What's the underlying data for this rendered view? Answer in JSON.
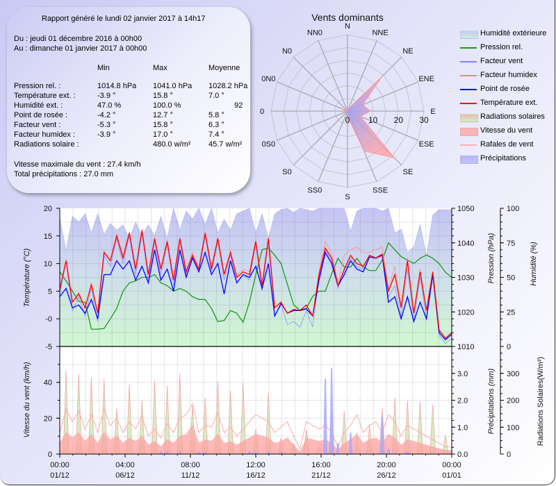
{
  "summary": {
    "generated": "Rapport généré le lundi 02 janvier 2017 à 14h17",
    "from": "Du : jeudi 01 décembre 2016 à 00h00",
    "to": "Au : dimanche 01 janvier 2017 à 00h00",
    "headers": [
      "Min",
      "Max",
      "Moyenne"
    ],
    "rows": [
      {
        "label": "Pression rel. :",
        "min": "1014.8 hPa",
        "max": "1041.0 hPa",
        "avg": "1028.2 hPa"
      },
      {
        "label": "Température ext. :",
        "min": "-3.9 °",
        "max": "15.8 °",
        "avg": "7.0 °"
      },
      {
        "label": "Humidité ext. :",
        "min": "47.0 %",
        "max": "100.0 %",
        "avg": "92"
      },
      {
        "label": "Point de rosée :",
        "min": "-4.2 °",
        "max": "12.7 °",
        "avg": "5.8 °"
      },
      {
        "label": "Facteur vent :",
        "min": "-5.3 °",
        "max": "15.8 °",
        "avg": "6.3 °"
      },
      {
        "label": "Facteur humidex :",
        "min": "-3.9 °",
        "max": "17.0 °",
        "avg": "7.4 °"
      },
      {
        "label": "Radiations solaire :",
        "min": "",
        "max": "480.0 w/m²",
        "avg": "45.7 w/m²"
      }
    ],
    "max_wind": "Vitesse maximale du vent : 27.4 km/h",
    "total_rain": "Total précipitations : 27.0 mm"
  },
  "legend": [
    {
      "label": "Humidité extérieure",
      "kind": "area",
      "color": "#c8c8f4",
      "color2": "#c8f0d8"
    },
    {
      "label": "Pression rel.",
      "kind": "line",
      "color": "#1a9a1a"
    },
    {
      "label": "Facteur vent",
      "kind": "line",
      "color": "#8080ff"
    },
    {
      "label": "Facteur humidex",
      "kind": "line",
      "color": "#ff8080"
    },
    {
      "label": "Point de rosée",
      "kind": "line",
      "color": "#0000ff"
    },
    {
      "label": "Température ext.",
      "kind": "line",
      "color": "#ff0000"
    },
    {
      "label": "Radiations solaires",
      "kind": "area",
      "color": "#f0b8b8",
      "color2": "#c8f0c0"
    },
    {
      "label": "Vitesse du vent",
      "kind": "area",
      "color": "#f7b5b5",
      "color2": "#f7b5b5"
    },
    {
      "label": "Rafales de vent",
      "kind": "line",
      "color": "#ffb0b0"
    },
    {
      "label": "Précipitations",
      "kind": "area",
      "color": "#b8b8fa",
      "color2": "#c0c0fa"
    }
  ],
  "chart_data": [
    {
      "type": "radar",
      "title": "Vents dominants",
      "directions": [
        "N",
        "NNE",
        "NE",
        "ENE",
        "E",
        "ESE",
        "SE",
        "SSE",
        "S",
        "SS0",
        "S0",
        "0S0",
        "0",
        "0N0",
        "N0",
        "NN0"
      ],
      "values": [
        0.5,
        1,
        19,
        6.5,
        9,
        5.5,
        26,
        17,
        2,
        1,
        1,
        1,
        2,
        0.5,
        0.5,
        0.5
      ],
      "rlim": [
        0,
        30
      ],
      "rticks": [
        "0",
        "10",
        "20",
        "30"
      ],
      "color": "#ff9a9a",
      "center_color": "#a0a0f5"
    },
    {
      "type": "line",
      "x": [
        "01/12 00h",
        "01/12 12h",
        "02/12 00h",
        "02/12 12h",
        "03/12 00h",
        "03/12 12h",
        "04/12 00h",
        "04/12 12h",
        "05/12 00h",
        "05/12 12h",
        "06/12 00h",
        "06/12 12h",
        "07/12 00h",
        "07/12 12h",
        "08/12 00h",
        "08/12 12h",
        "09/12 00h",
        "09/12 12h",
        "10/12 00h",
        "10/12 12h",
        "11/12 00h",
        "11/12 12h",
        "12/12 00h",
        "12/12 12h",
        "13/12 00h",
        "13/12 12h",
        "14/12 00h",
        "14/12 12h",
        "15/12 00h",
        "15/12 12h",
        "16/12 00h",
        "16/12 12h",
        "17/12 00h",
        "17/12 12h",
        "18/12 00h",
        "18/12 12h",
        "19/12 00h",
        "19/12 12h",
        "20/12 00h",
        "20/12 12h",
        "21/12 00h",
        "21/12 12h",
        "22/12 00h",
        "22/12 12h",
        "23/12 00h",
        "23/12 12h",
        "24/12 00h",
        "24/12 12h",
        "25/12 00h",
        "25/12 12h",
        "26/12 00h",
        "26/12 12h",
        "27/12 00h",
        "27/12 12h",
        "28/12 00h",
        "28/12 12h",
        "29/12 00h",
        "29/12 12h",
        "30/12 00h",
        "30/12 12h",
        "31/12 00h",
        "31/12 12h",
        "01/01 00h"
      ],
      "xticks": [
        {
          "time": "00:00",
          "date": "01/12"
        },
        {
          "time": "04:00",
          "date": "06/12"
        },
        {
          "time": "08:00",
          "date": "11/12"
        },
        {
          "time": "12:00",
          "date": "16/12"
        },
        {
          "time": "16:00",
          "date": "21/12"
        },
        {
          "time": "20:00",
          "date": "26/12"
        },
        {
          "time": "00:00",
          "date": "01/01"
        }
      ],
      "ylabel": "Température (°C)",
      "ylim": [
        -5,
        20
      ],
      "yticks": [
        "20",
        "15",
        "10",
        "5",
        "-0",
        "-5"
      ],
      "y2label": "Pression (hPa)",
      "y2lim": [
        1010,
        1050
      ],
      "y2ticks": [
        "1050",
        "1040",
        "1030",
        "1020",
        "1010"
      ],
      "y3label": "Humidité (%)",
      "y3lim": [
        0,
        100
      ],
      "y3ticks": [
        "100",
        "75",
        "50",
        "25",
        "0"
      ],
      "grid": true,
      "series": [
        {
          "name": "Humidité extérieure",
          "axis": "y3",
          "kind": "area",
          "values": [
            92.8,
            69,
            94,
            90,
            96,
            82,
            96,
            81,
            89,
            84,
            88,
            78,
            90,
            80,
            88,
            80,
            94,
            78,
            100,
            84,
            98,
            92,
            100,
            88,
            100,
            82,
            92,
            84,
            96,
            98,
            100,
            82,
            96,
            78,
            96,
            99,
            100,
            97,
            100,
            99,
            98,
            100,
            100,
            100,
            100,
            100,
            83,
            98,
            100,
            100,
            100,
            98,
            100,
            82,
            85,
            68,
            72,
            88,
            65,
            95,
            99,
            99,
            99
          ]
        },
        {
          "name": "Pression rel.",
          "axis": "y2",
          "color": "#1a9a1a",
          "values": [
            1031.6,
            1029,
            1026,
            1023,
            1022.8,
            1015,
            1015,
            1015.2,
            1018,
            1021,
            1026,
            1028.4,
            1029,
            1030,
            1030,
            1030.8,
            1028.4,
            1027.6,
            1026,
            1026.8,
            1026,
            1024.4,
            1023.6,
            1023.6,
            1021,
            1017.2,
            1017.5,
            1020.4,
            1019.6,
            1017,
            1022.8,
            1030.8,
            1038,
            1038.5,
            1036.4,
            1034,
            1028,
            1022,
            1020.5,
            1021,
            1024.5,
            1026,
            1026,
            1031,
            1035.5,
            1033,
            1033,
            1035.5,
            1033,
            1032,
            1032,
            1035,
            1040,
            1038,
            1036,
            1035,
            1034,
            1035.5,
            1036.5,
            1035.5,
            1034,
            1031.5,
            1030
          ]
        },
        {
          "name": "Facteur vent",
          "axis": "y",
          "color": "#8c8cff",
          "values": [
            4.5,
            10.5,
            1.5,
            4,
            0.5,
            5.5,
            -0.5,
            11.5,
            9.5,
            14.5,
            10,
            15,
            8,
            15.5,
            7,
            14,
            8,
            13.5,
            6,
            14,
            8,
            11,
            8.5,
            15,
            8.5,
            14,
            7,
            11.5,
            6.5,
            8,
            7,
            13.5,
            5,
            14,
            0.5,
            2.5,
            -1,
            -0.5,
            -1.5,
            1.5,
            -1.5,
            7.5,
            12.5,
            10.5,
            5.5,
            8.5,
            11,
            9.5,
            9,
            11.2,
            10.8,
            11.5,
            4,
            6,
            0.5,
            9,
            -0.5,
            7.5,
            0,
            8,
            -3,
            -4.5,
            -3.5
          ]
        },
        {
          "name": "Facteur humidex",
          "axis": "y",
          "color": "#ff8c8c",
          "values": [
            5.5,
            10.8,
            3,
            4.8,
            2,
            6.5,
            1,
            12.2,
            10.8,
            15.3,
            11.5,
            15.8,
            9.3,
            16.3,
            8.3,
            14.8,
            9.3,
            14.3,
            7.2,
            14.8,
            9,
            12,
            9.5,
            15.8,
            9.5,
            14.8,
            8.3,
            12.3,
            8,
            9,
            8.5,
            14.3,
            6.2,
            14.8,
            2,
            3,
            1,
            1.7,
            1.5,
            2.5,
            0.5,
            8.5,
            14,
            11.8,
            6.5,
            11.5,
            12.5,
            13,
            12,
            12,
            12.5,
            13,
            5.5,
            9.5,
            2.5,
            11,
            1.2,
            9,
            1.5,
            8.5,
            -2,
            -3.5,
            -2.5
          ]
        },
        {
          "name": "Point de rosée",
          "axis": "y",
          "color": "#0000ff",
          "values": [
            4,
            5.5,
            2,
            2.5,
            1,
            3.5,
            0,
            8,
            8,
            10.5,
            9,
            10.5,
            7,
            9.5,
            6.5,
            12.5,
            7,
            9,
            5,
            12.5,
            7.5,
            11,
            8.5,
            12,
            8,
            10,
            4.5,
            10.5,
            6.5,
            8,
            7.5,
            9.5,
            5.5,
            10,
            0.5,
            2.8,
            1,
            1.5,
            1.5,
            1.8,
            0.5,
            7,
            12,
            10,
            6,
            8,
            10.5,
            9,
            8.5,
            11.2,
            11,
            11.5,
            3,
            4,
            0,
            4,
            -0.5,
            3,
            0,
            8,
            -2.5,
            -3.8,
            -2.8
          ]
        },
        {
          "name": "Température ext.",
          "axis": "y",
          "color": "#ff0000",
          "values": [
            5.3,
            10.5,
            3,
            4.5,
            2,
            6.2,
            1,
            12,
            10.5,
            15,
            11,
            15.5,
            9,
            16,
            8,
            14.5,
            9,
            14,
            7,
            14.5,
            8.5,
            11.5,
            9,
            15.5,
            9,
            14.5,
            8,
            12,
            7.5,
            8.5,
            8,
            14,
            6,
            14.5,
            2,
            3,
            1,
            1.7,
            1.5,
            2.5,
            0.5,
            8,
            12.8,
            11,
            6,
            9,
            11.5,
            10,
            9.5,
            11.5,
            11,
            11.7,
            5,
            8,
            2,
            10.5,
            1,
            8.5,
            1.5,
            8.5,
            -2,
            -3.5,
            -2.5
          ]
        }
      ]
    },
    {
      "type": "area",
      "ylabel": "Vitesse du vent (km/h)",
      "ylim": [
        0,
        60
      ],
      "yticks": [
        "40",
        "20",
        "0"
      ],
      "y2label": "Précipitations (mm)",
      "y2lim": [
        0,
        4
      ],
      "y2ticks": [
        "3.0",
        "2.0",
        "1.0",
        "0.0"
      ],
      "y3label": "Radiations Solaires(W/m²)",
      "y3lim": [
        0,
        400
      ],
      "y3ticks": [
        "300",
        "200",
        "100",
        "0"
      ],
      "grid": true,
      "series": [
        {
          "name": "Vitesse du vent",
          "axis": "y",
          "values": [
            6,
            12,
            9,
            12,
            7,
            11,
            6,
            12,
            8,
            10,
            6,
            9,
            7,
            10,
            5,
            7,
            4,
            8,
            6,
            10,
            11,
            16,
            6,
            8,
            7,
            11,
            6,
            7,
            5,
            7,
            9,
            11,
            10,
            9,
            6,
            7,
            9,
            5,
            1,
            9,
            8,
            7,
            8,
            6,
            2,
            6,
            8,
            11,
            6,
            8,
            9,
            6,
            11,
            9,
            5,
            8,
            7,
            6,
            5,
            4,
            3,
            2,
            2
          ]
        },
        {
          "name": "Rafales de vent",
          "axis": "y",
          "values": [
            12,
            25,
            18,
            24,
            14,
            22,
            12,
            25,
            16,
            20,
            12,
            18,
            14,
            21,
            10,
            14,
            9,
            17,
            12,
            20,
            22,
            28,
            12,
            16,
            15,
            23,
            12,
            15,
            10,
            14,
            18,
            22,
            20,
            18,
            12,
            15,
            18,
            10,
            3,
            18,
            16,
            14,
            16,
            12,
            4,
            12,
            16,
            22,
            12,
            16,
            18,
            12,
            22,
            18,
            10,
            16,
            14,
            12,
            10,
            8,
            6,
            4,
            4
          ]
        },
        {
          "name": "Radiations solaires",
          "axis": "y3",
          "daily_noon_values": [
            313,
            300,
            287,
            280,
            170,
            260,
            200,
            275,
            255,
            300,
            180,
            210,
            270,
            235,
            265,
            95,
            230,
            60,
            40,
            90,
            30,
            150,
            160,
            80,
            105,
            170,
            210,
            200,
            195,
            185,
            70
          ]
        },
        {
          "name": "Précipitations",
          "axis": "y2",
          "values": [
            0,
            0,
            0,
            0,
            0,
            0,
            0,
            0,
            0,
            0,
            0,
            0,
            0,
            0,
            0,
            0,
            0.1,
            0.1,
            0,
            0.1,
            0,
            0,
            0.1,
            0.1,
            0,
            0,
            0,
            0,
            0,
            0,
            0.1,
            0.1,
            0,
            0.1,
            0,
            0.1,
            0,
            0,
            0,
            0,
            0,
            0,
            2.8,
            3.2,
            0.4,
            0,
            0.8,
            0,
            0,
            0,
            0,
            1.4,
            0.2,
            0,
            0,
            0.1,
            0,
            0,
            0,
            0,
            0,
            0,
            0
          ]
        }
      ]
    }
  ]
}
